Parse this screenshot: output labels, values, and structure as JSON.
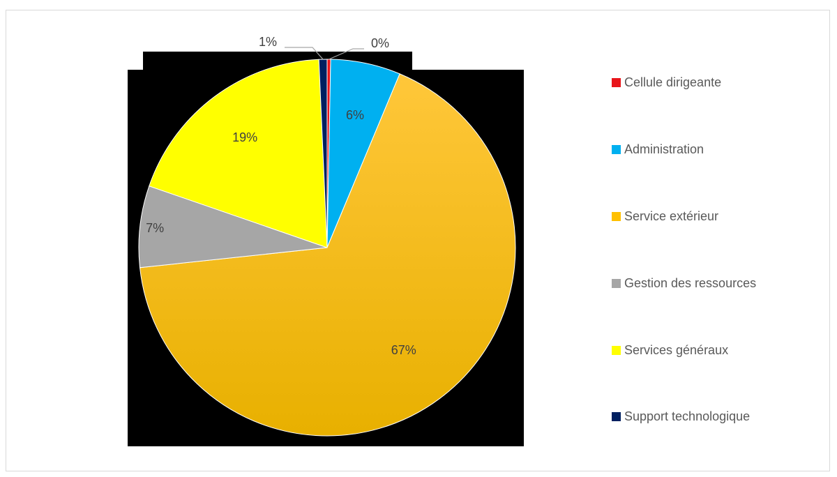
{
  "chart_data": {
    "type": "pie",
    "categories": [
      "Cellule dirigeante",
      "Administration",
      "Service extérieur",
      "Gestion des ressources",
      "Services généraux",
      "Support technologique"
    ],
    "values": [
      0.3,
      6,
      67,
      7,
      19,
      0.7
    ],
    "labels": [
      "0%",
      "6%",
      "67%",
      "7%",
      "19%",
      "1%"
    ],
    "colors": [
      "#e8151b",
      "#00b0f0",
      "#ffc000",
      "#a6a6a6",
      "#ffff00",
      "#002060"
    ],
    "title": "",
    "legend_position": "right",
    "start_angle": "top, clockwise"
  }
}
